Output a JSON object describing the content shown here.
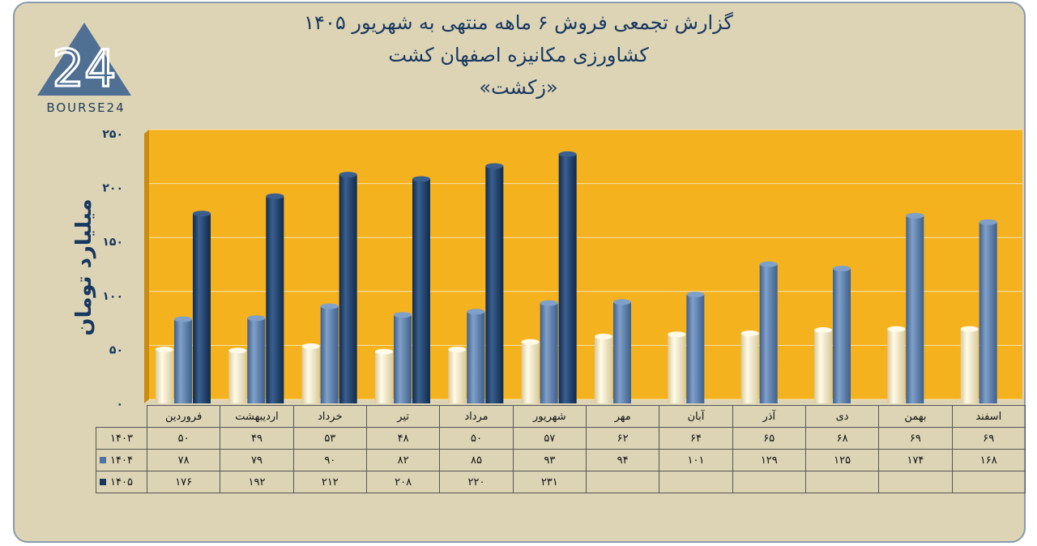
{
  "header": {
    "line1": "گزارش تجمعی فروش ۶ ماهه منتهی به شهریور ۱۴۰۵",
    "line2": "کشاورزی مکانیزه اصفهان کشت",
    "line3": "«زکشت»"
  },
  "logo": {
    "mark": "24",
    "text": "BOURSE24"
  },
  "colors": {
    "background": "#ddd4b6",
    "plot_area": "#f5b21f",
    "series_1403": "#e8dcb8",
    "series_1404": "#4f72a0",
    "series_1405": "#17375e",
    "text_dark": "#17375e"
  },
  "chart_data": {
    "type": "bar",
    "ylabel": "میلیارد تومان",
    "ylim": [
      0,
      250
    ],
    "yticks": [
      "۰",
      "۵۰",
      "۱۰۰",
      "۱۵۰",
      "۲۰۰",
      "۲۵۰"
    ],
    "ytick_values": [
      0,
      50,
      100,
      150,
      200,
      250
    ],
    "grid": true,
    "categories": [
      "فروردین",
      "اردیبهشت",
      "خرداد",
      "تیر",
      "مرداد",
      "شهریور",
      "مهر",
      "آبان",
      "آذر",
      "دی",
      "بهمن",
      "اسفند"
    ],
    "series": [
      {
        "name": "۱۴۰۳",
        "values": [
          50,
          49,
          53,
          48,
          50,
          57,
          62,
          64,
          65,
          68,
          69,
          69
        ],
        "labels": [
          "۵۰",
          "۴۹",
          "۵۳",
          "۴۸",
          "۵۰",
          "۵۷",
          "۶۲",
          "۶۴",
          "۶۵",
          "۶۸",
          "۶۹",
          "۶۹"
        ]
      },
      {
        "name": "۱۴۰۴",
        "values": [
          78,
          79,
          90,
          82,
          85,
          93,
          94,
          101,
          129,
          125,
          174,
          168
        ],
        "labels": [
          "۷۸",
          "۷۹",
          "۹۰",
          "۸۲",
          "۸۵",
          "۹۳",
          "۹۴",
          "۱۰۱",
          "۱۲۹",
          "۱۲۵",
          "۱۷۴",
          "۱۶۸"
        ]
      },
      {
        "name": "۱۴۰۵",
        "values": [
          176,
          192,
          212,
          208,
          220,
          231,
          null,
          null,
          null,
          null,
          null,
          null
        ],
        "labels": [
          "۱۷۶",
          "۱۹۲",
          "۲۱۲",
          "۲۰۸",
          "۲۲۰",
          "۲۳۱",
          "",
          "",
          "",
          "",
          "",
          ""
        ]
      }
    ]
  }
}
